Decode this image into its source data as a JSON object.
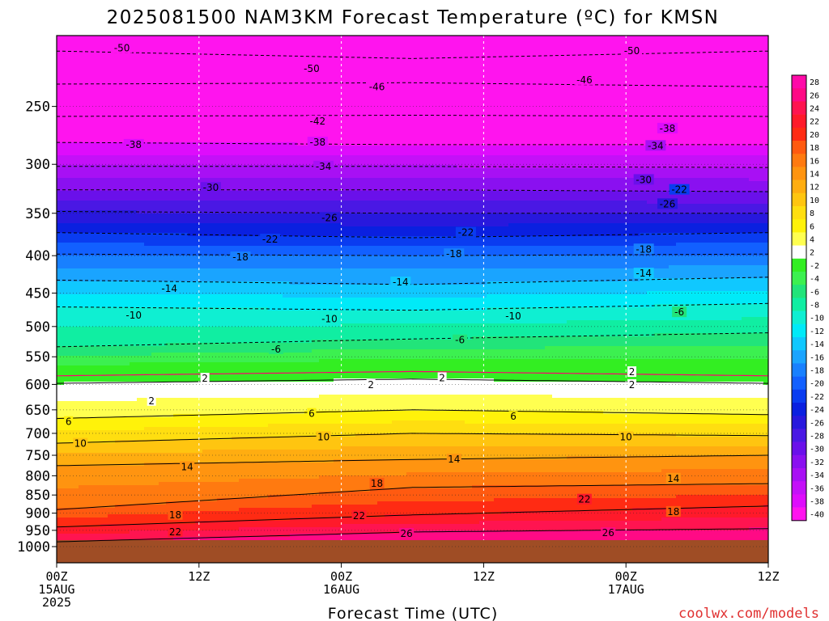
{
  "chart_data": {
    "type": "heatmap",
    "title": "2025081500 NAM3KM Forecast Temperature (ºC) for KMSN",
    "xlabel": "Forecast Time (UTC)",
    "ylabel": "",
    "x_ticks": [
      {
        "hour": 0,
        "label": "00Z",
        "sub": [
          "15AUG",
          "2025"
        ]
      },
      {
        "hour": 12,
        "label": "12Z",
        "sub": []
      },
      {
        "hour": 24,
        "label": "00Z",
        "sub": [
          "16AUG"
        ]
      },
      {
        "hour": 36,
        "label": "12Z",
        "sub": []
      },
      {
        "hour": 48,
        "label": "00Z",
        "sub": [
          "17AUG"
        ]
      },
      {
        "hour": 60,
        "label": "12Z",
        "sub": []
      }
    ],
    "xlim": [
      0,
      60
    ],
    "y_ticks": [
      250,
      300,
      350,
      400,
      450,
      500,
      550,
      600,
      650,
      700,
      750,
      800,
      850,
      900,
      950,
      1000
    ],
    "ylim": [
      1000,
      200
    ],
    "y_scale": "log-pressure",
    "colorbar": {
      "levels": [
        28,
        26,
        24,
        22,
        20,
        18,
        16,
        14,
        12,
        10,
        8,
        6,
        4,
        2,
        -2,
        -4,
        -6,
        -8,
        -10,
        -12,
        -14,
        -16,
        -18,
        -20,
        -22,
        -24,
        -26,
        -28,
        -30,
        -32,
        -34,
        -36,
        -38,
        -40
      ],
      "colors": [
        "#ff0aa8",
        "#ff0a85",
        "#ff1450",
        "#ff1a2a",
        "#ff2b13",
        "#ff5a10",
        "#ff7a10",
        "#ff9410",
        "#ffad10",
        "#ffc510",
        "#ffde10",
        "#fff20a",
        "#ffff50",
        "#ffffff",
        "#33ee22",
        "#3cf050",
        "#22e47a",
        "#10eea2",
        "#0fefd2",
        "#00eaf8",
        "#10c8ff",
        "#1aa4ff",
        "#1880ff",
        "#1260ff",
        "#0a3cf0",
        "#0a20e0",
        "#2818dd",
        "#4a18e4",
        "#6a10ea",
        "#8a10f0",
        "#a810f4",
        "#c410f8",
        "#de0cfc",
        "#ff14ee"
      ]
    },
    "series": [
      {
        "value": -50,
        "style": "dashed",
        "levels": [
          {
            "hour": 0,
            "p": 210
          },
          {
            "hour": 30,
            "p": 215
          },
          {
            "hour": 60,
            "p": 210
          }
        ]
      },
      {
        "value": -46,
        "style": "dashed",
        "levels": [
          {
            "hour": 0,
            "p": 233
          },
          {
            "hour": 30,
            "p": 232
          },
          {
            "hour": 60,
            "p": 235
          }
        ]
      },
      {
        "value": -42,
        "style": "dashed",
        "levels": [
          {
            "hour": 0,
            "p": 258
          },
          {
            "hour": 30,
            "p": 257
          },
          {
            "hour": 60,
            "p": 258
          }
        ]
      },
      {
        "value": -38,
        "style": "dashed",
        "levels": [
          {
            "hour": 0,
            "p": 280
          },
          {
            "hour": 30,
            "p": 282
          },
          {
            "hour": 60,
            "p": 282
          }
        ]
      },
      {
        "value": -34,
        "style": "dashed",
        "levels": [
          {
            "hour": 0,
            "p": 302
          },
          {
            "hour": 30,
            "p": 302
          },
          {
            "hour": 60,
            "p": 303
          }
        ]
      },
      {
        "value": -30,
        "style": "dashed",
        "levels": [
          {
            "hour": 0,
            "p": 325
          },
          {
            "hour": 30,
            "p": 325
          },
          {
            "hour": 60,
            "p": 327
          }
        ]
      },
      {
        "value": -26,
        "style": "dashed",
        "levels": [
          {
            "hour": 0,
            "p": 348
          },
          {
            "hour": 30,
            "p": 350
          },
          {
            "hour": 60,
            "p": 350
          }
        ]
      },
      {
        "value": -22,
        "style": "dashed",
        "levels": [
          {
            "hour": 0,
            "p": 372
          },
          {
            "hour": 30,
            "p": 378
          },
          {
            "hour": 60,
            "p": 372
          }
        ]
      },
      {
        "value": -18,
        "style": "dashed",
        "levels": [
          {
            "hour": 0,
            "p": 398
          },
          {
            "hour": 30,
            "p": 400
          },
          {
            "hour": 60,
            "p": 398
          }
        ]
      },
      {
        "value": -14,
        "style": "dashed",
        "levels": [
          {
            "hour": 0,
            "p": 432
          },
          {
            "hour": 30,
            "p": 438
          },
          {
            "hour": 60,
            "p": 428
          }
        ]
      },
      {
        "value": -10,
        "style": "dashed",
        "levels": [
          {
            "hour": 0,
            "p": 470
          },
          {
            "hour": 30,
            "p": 475
          },
          {
            "hour": 60,
            "p": 465
          }
        ]
      },
      {
        "value": -6,
        "style": "dashed",
        "levels": [
          {
            "hour": 0,
            "p": 533
          },
          {
            "hour": 30,
            "p": 520
          },
          {
            "hour": 60,
            "p": 510
          }
        ]
      },
      {
        "value": 2,
        "style": "solid",
        "levels": [
          {
            "hour": 0,
            "p": 598
          },
          {
            "hour": 30,
            "p": 590
          },
          {
            "hour": 60,
            "p": 598
          }
        ]
      },
      {
        "value": 6,
        "style": "solid",
        "levels": [
          {
            "hour": 0,
            "p": 668
          },
          {
            "hour": 30,
            "p": 650
          },
          {
            "hour": 60,
            "p": 660
          }
        ]
      },
      {
        "value": 10,
        "style": "solid",
        "levels": [
          {
            "hour": 0,
            "p": 722
          },
          {
            "hour": 30,
            "p": 700
          },
          {
            "hour": 60,
            "p": 705
          }
        ]
      },
      {
        "value": 14,
        "style": "solid",
        "levels": [
          {
            "hour": 0,
            "p": 775
          },
          {
            "hour": 30,
            "p": 760
          },
          {
            "hour": 60,
            "p": 750
          }
        ]
      },
      {
        "value": 18,
        "style": "solid",
        "levels": [
          {
            "hour": 0,
            "p": 890
          },
          {
            "hour": 30,
            "p": 830
          },
          {
            "hour": 60,
            "p": 820
          }
        ]
      },
      {
        "value": 22,
        "style": "solid",
        "levels": [
          {
            "hour": 0,
            "p": 940
          },
          {
            "hour": 30,
            "p": 905
          },
          {
            "hour": 60,
            "p": 880
          }
        ]
      },
      {
        "value": 26,
        "style": "solid",
        "levels": [
          {
            "hour": 0,
            "p": 985
          },
          {
            "hour": 30,
            "p": 955
          },
          {
            "hour": 60,
            "p": 945
          }
        ]
      }
    ],
    "contour_labels": [
      {
        "text": "-50",
        "hour": 5.5,
        "p": 208
      },
      {
        "text": "-50",
        "hour": 21.5,
        "p": 222
      },
      {
        "text": "-50",
        "hour": 48.5,
        "p": 210
      },
      {
        "text": "-46",
        "hour": 27,
        "p": 235
      },
      {
        "text": "-46",
        "hour": 44.5,
        "p": 230
      },
      {
        "text": "-42",
        "hour": 22,
        "p": 262
      },
      {
        "text": "-38",
        "hour": 6.5,
        "p": 282
      },
      {
        "text": "-38",
        "hour": 22,
        "p": 280
      },
      {
        "text": "-38",
        "hour": 51.5,
        "p": 268
      },
      {
        "text": "-34",
        "hour": 22.5,
        "p": 302
      },
      {
        "text": "-34",
        "hour": 50.5,
        "p": 283
      },
      {
        "text": "-30",
        "hour": 13,
        "p": 323
      },
      {
        "text": "-30",
        "hour": 49.5,
        "p": 315
      },
      {
        "text": "-26",
        "hour": 23,
        "p": 355
      },
      {
        "text": "-26",
        "hour": 51.5,
        "p": 340
      },
      {
        "text": "-22",
        "hour": 18,
        "p": 380
      },
      {
        "text": "-22",
        "hour": 34.5,
        "p": 372
      },
      {
        "text": "-22",
        "hour": 52.5,
        "p": 325
      },
      {
        "text": "-18",
        "hour": 15.5,
        "p": 402
      },
      {
        "text": "-18",
        "hour": 33.5,
        "p": 398
      },
      {
        "text": "-18",
        "hour": 49.5,
        "p": 392
      },
      {
        "text": "-14",
        "hour": 9.5,
        "p": 444
      },
      {
        "text": "-14",
        "hour": 29,
        "p": 435
      },
      {
        "text": "-14",
        "hour": 49.5,
        "p": 423
      },
      {
        "text": "-10",
        "hour": 6.5,
        "p": 483
      },
      {
        "text": "-10",
        "hour": 23,
        "p": 488
      },
      {
        "text": "-10",
        "hour": 38.5,
        "p": 484
      },
      {
        "text": "-6",
        "hour": 18.5,
        "p": 537
      },
      {
        "text": "-6",
        "hour": 34,
        "p": 522
      },
      {
        "text": "-6",
        "hour": 52.5,
        "p": 478
      },
      {
        "text": "2",
        "hour": 12.5,
        "p": 589
      },
      {
        "text": "2",
        "hour": 26.5,
        "p": 601
      },
      {
        "text": "2",
        "hour": 32.5,
        "p": 588
      },
      {
        "text": "2",
        "hour": 48.5,
        "p": 577
      },
      {
        "text": "2",
        "hour": 48.5,
        "p": 601
      },
      {
        "text": "2",
        "hour": 8,
        "p": 632
      },
      {
        "text": "6",
        "hour": 1,
        "p": 675
      },
      {
        "text": "6",
        "hour": 21.5,
        "p": 658
      },
      {
        "text": "6",
        "hour": 38.5,
        "p": 664
      },
      {
        "text": "10",
        "hour": 2,
        "p": 723
      },
      {
        "text": "10",
        "hour": 22.5,
        "p": 708
      },
      {
        "text": "10",
        "hour": 48,
        "p": 708
      },
      {
        "text": "14",
        "hour": 11,
        "p": 778
      },
      {
        "text": "14",
        "hour": 33.5,
        "p": 760
      },
      {
        "text": "14",
        "hour": 52,
        "p": 807
      },
      {
        "text": "18",
        "hour": 27,
        "p": 820
      },
      {
        "text": "18",
        "hour": 10,
        "p": 905
      },
      {
        "text": "18",
        "hour": 52,
        "p": 896
      },
      {
        "text": "22",
        "hour": 25.5,
        "p": 908
      },
      {
        "text": "22",
        "hour": 44.5,
        "p": 862
      },
      {
        "text": "22",
        "hour": 10,
        "p": 955
      },
      {
        "text": "26",
        "hour": 29.5,
        "p": 960
      },
      {
        "text": "26",
        "hour": 46.5,
        "p": 958
      }
    ]
  },
  "credit": "coolwx.com/models",
  "colors": {
    "ground": "#9f4d25",
    "freezing_line": "#ff0070"
  }
}
